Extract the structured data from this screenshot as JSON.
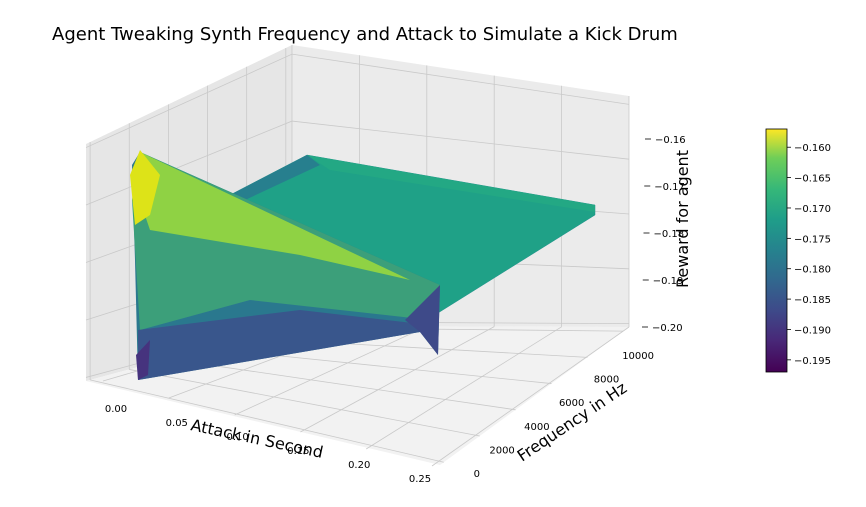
{
  "chart_data": {
    "type": "surface3d",
    "title": "Agent Tweaking Synth Frequency and Attack to Simulate a Kick Drum",
    "xlabel": "Attack in Second",
    "ylabel": "Frequency in Hz",
    "zlabel": "Reward for agent",
    "x_ticks": [
      "0.00",
      "0.05",
      "0.10",
      "0.15",
      "0.20",
      "0.25"
    ],
    "y_ticks": [
      "0",
      "2000",
      "4000",
      "6000",
      "8000",
      "10000"
    ],
    "z_ticks": [
      "−0.20",
      "−0.19",
      "−0.18",
      "−0.17",
      "−0.16"
    ],
    "xlim": [
      0,
      0.25
    ],
    "ylim": [
      0,
      10000
    ],
    "zlim": [
      -0.2,
      -0.16
    ],
    "colormap": "viridis",
    "colorbar": {
      "ticks": [
        "−0.160",
        "−0.165",
        "−0.170",
        "−0.175",
        "−0.180",
        "−0.185",
        "−0.190",
        "−0.195"
      ],
      "range": [
        -0.197,
        -0.157
      ]
    },
    "surface": {
      "corners": [
        {
          "x": 0.0,
          "y": 0,
          "z": -0.197
        },
        {
          "x": 0.0,
          "y": 0,
          "z": -0.158
        },
        {
          "x": 0.0,
          "y": 10000,
          "z": -0.175
        },
        {
          "x": 0.25,
          "y": 10000,
          "z": -0.173
        },
        {
          "x": 0.25,
          "y": 0,
          "z": -0.176
        },
        {
          "x": 0.25,
          "y": 0,
          "z": -0.19
        }
      ]
    }
  }
}
